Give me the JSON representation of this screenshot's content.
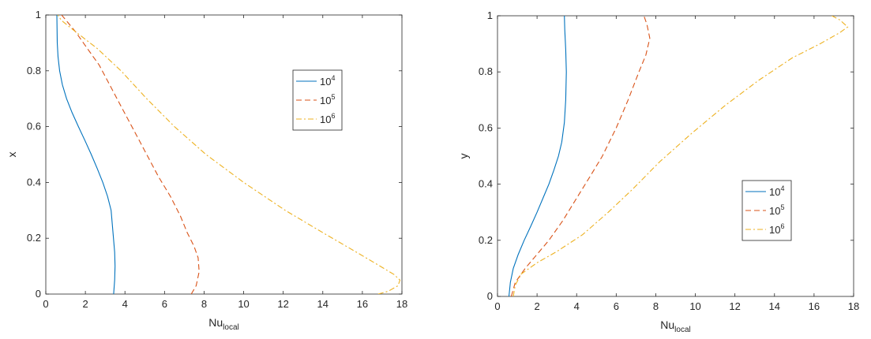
{
  "chart_data": [
    {
      "type": "line",
      "title": "",
      "xlabel": "Nu",
      "xlabel_sub": "local",
      "ylabel": "x",
      "xlim": [
        0,
        18
      ],
      "ylim": [
        0,
        1
      ],
      "xticks": [
        0,
        2,
        4,
        6,
        8,
        10,
        12,
        14,
        16,
        18
      ],
      "yticks": [
        0,
        0.2,
        0.4,
        0.6,
        0.8,
        1
      ],
      "legend_position": "upper-right-inside",
      "series": [
        {
          "name_base": "10",
          "name_exp": "4",
          "color": "#0072BD",
          "dash": "solid",
          "x": [
            3.43,
            3.48,
            3.5,
            3.48,
            3.42,
            3.3,
            3.12,
            2.88,
            2.6,
            2.3,
            1.98,
            1.65,
            1.33,
            1.05,
            0.84,
            0.7,
            0.62,
            0.58,
            0.56
          ],
          "y": [
            0,
            0.05,
            0.1,
            0.15,
            0.2,
            0.3,
            0.35,
            0.4,
            0.45,
            0.5,
            0.55,
            0.6,
            0.65,
            0.7,
            0.75,
            0.8,
            0.85,
            0.9,
            1.0
          ]
        },
        {
          "name_base": "10",
          "name_exp": "5",
          "color": "#D95319",
          "dash": "dashed",
          "x": [
            7.35,
            7.6,
            7.75,
            7.7,
            7.5,
            7.15,
            6.8,
            6.3,
            5.7,
            5.1,
            4.5,
            3.9,
            3.3,
            2.7,
            2.1,
            1.5,
            0.8
          ],
          "y": [
            0,
            0.03,
            0.08,
            0.13,
            0.17,
            0.22,
            0.28,
            0.35,
            0.42,
            0.5,
            0.58,
            0.66,
            0.74,
            0.82,
            0.88,
            0.94,
            1.0
          ]
        },
        {
          "name_base": "10",
          "name_exp": "6",
          "color": "#EDB120",
          "dash": "dashdot",
          "x": [
            16.8,
            17.3,
            17.8,
            17.9,
            17.6,
            16.9,
            15.7,
            14.0,
            12.1,
            10.0,
            8.1,
            6.5,
            5.1,
            3.8,
            2.6,
            1.5,
            0.8,
            0.6
          ],
          "y": [
            0,
            0.01,
            0.03,
            0.05,
            0.07,
            0.1,
            0.15,
            0.22,
            0.3,
            0.4,
            0.5,
            0.6,
            0.7,
            0.8,
            0.88,
            0.94,
            0.98,
            1.0
          ]
        }
      ]
    },
    {
      "type": "line",
      "title": "",
      "xlabel": "Nu",
      "xlabel_sub": "local",
      "ylabel": "y",
      "xlim": [
        0,
        18
      ],
      "ylim": [
        0,
        1
      ],
      "xticks": [
        0,
        2,
        4,
        6,
        8,
        10,
        12,
        14,
        16,
        18
      ],
      "yticks": [
        0,
        0.2,
        0.4,
        0.6,
        0.8,
        1
      ],
      "legend_position": "lower-right-inside",
      "series": [
        {
          "name_base": "10",
          "name_exp": "4",
          "color": "#0072BD",
          "dash": "solid",
          "x": [
            0.58,
            0.65,
            0.8,
            1.05,
            1.35,
            1.68,
            2.0,
            2.3,
            2.6,
            2.85,
            3.08,
            3.25,
            3.38,
            3.45,
            3.48,
            3.45,
            3.4,
            3.38
          ],
          "y": [
            0,
            0.05,
            0.1,
            0.15,
            0.2,
            0.25,
            0.3,
            0.35,
            0.4,
            0.45,
            0.5,
            0.55,
            0.62,
            0.7,
            0.8,
            0.88,
            0.95,
            1.0
          ]
        },
        {
          "name_base": "10",
          "name_exp": "5",
          "color": "#D95319",
          "dash": "dashed",
          "x": [
            0.7,
            0.9,
            1.4,
            2.0,
            2.6,
            3.3,
            4.0,
            4.7,
            5.3,
            6.0,
            6.6,
            7.15,
            7.5,
            7.7,
            7.55,
            7.4
          ],
          "y": [
            0,
            0.05,
            0.1,
            0.15,
            0.2,
            0.27,
            0.35,
            0.43,
            0.5,
            0.6,
            0.7,
            0.8,
            0.86,
            0.92,
            0.97,
            1.0
          ]
        },
        {
          "name_base": "10",
          "name_exp": "6",
          "color": "#EDB120",
          "dash": "dashdot",
          "x": [
            0.8,
            0.9,
            1.2,
            2.0,
            3.0,
            4.3,
            5.6,
            6.8,
            8.2,
            9.8,
            11.5,
            13.2,
            14.9,
            16.3,
            17.3,
            17.7,
            17.3,
            16.9
          ],
          "y": [
            0,
            0.04,
            0.08,
            0.12,
            0.16,
            0.22,
            0.3,
            0.38,
            0.48,
            0.58,
            0.68,
            0.77,
            0.85,
            0.9,
            0.94,
            0.96,
            0.985,
            1.0
          ]
        }
      ]
    }
  ]
}
